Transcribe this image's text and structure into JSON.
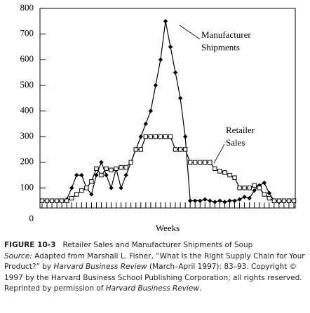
{
  "chart_data": {
    "type": "line",
    "xlabel": "Weeks",
    "ylim": [
      0,
      800
    ],
    "yticks": [
      0,
      100,
      200,
      300,
      400,
      500,
      600,
      700,
      800
    ],
    "series": [
      {
        "name": "Manufacturer Shipments",
        "color": "#000000",
        "marker": "diamond",
        "values": [
          50,
          50,
          50,
          50,
          50,
          55,
          100,
          150,
          150,
          100,
          75,
          150,
          200,
          150,
          100,
          175,
          100,
          150,
          200,
          250,
          300,
          350,
          400,
          500,
          600,
          750,
          650,
          550,
          450,
          300,
          50,
          50,
          50,
          55,
          50,
          45,
          50,
          45,
          50,
          50,
          55,
          65,
          60,
          90,
          110,
          120,
          80,
          50,
          45,
          50,
          50,
          50
        ]
      },
      {
        "name": "Retailer Sales",
        "color": "#000000",
        "marker": "square",
        "values": [
          50,
          50,
          50,
          50,
          50,
          50,
          60,
          75,
          90,
          100,
          125,
          175,
          150,
          175,
          170,
          175,
          180,
          180,
          200,
          250,
          250,
          300,
          300,
          300,
          300,
          300,
          300,
          250,
          250,
          250,
          200,
          200,
          200,
          200,
          200,
          175,
          165,
          160,
          150,
          140,
          100,
          100,
          100,
          110,
          100,
          75,
          60,
          50,
          50,
          50,
          50,
          50
        ]
      }
    ],
    "annotations": [
      [
        "Manufacturer",
        "Shipments"
      ],
      [
        "Retailer",
        "Sales"
      ]
    ]
  },
  "caption": {
    "label": "FIGURE 10-3",
    "title": "Retailer Sales and Manufacturer Shipments of Soup",
    "source_label": "Source:",
    "source_1": " Adapted from Marshall L. Fisher, “What Is the Right Supply Chain for Your Product?” by ",
    "journal_1": "Harvard Business Review",
    "source_2": " (March–April 1997): 83–93. Copyright © 1997 by the Harvard Business School Publishing Corporation; all rights reserved. Reprinted by permission of ",
    "journal_2": "Harvard Business Review",
    "source_3": "."
  }
}
